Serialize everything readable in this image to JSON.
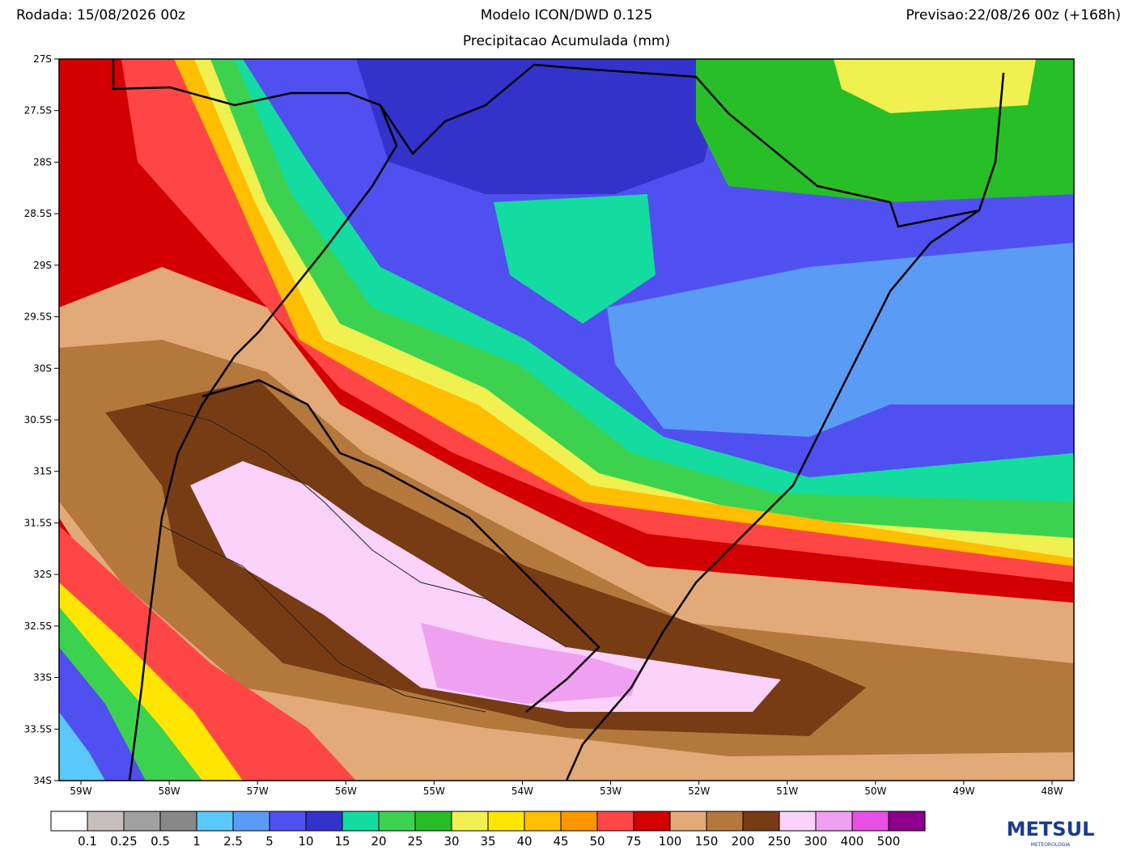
{
  "header": {
    "left": "Rodada: 15/08/2026 00z",
    "title": "Modelo ICON/DWD 0.125",
    "subtitle": "Precipitacao Acumulada (mm)",
    "right": "Previsao:22/08/26 00z (+168h)"
  },
  "map": {
    "lat_labels": [
      "27S",
      "27.5S",
      "28S",
      "28.5S",
      "29S",
      "29.5S",
      "30S",
      "30.5S",
      "31S",
      "31.5S",
      "32S",
      "32.5S",
      "33S",
      "33.5S",
      "34S"
    ],
    "lon_labels": [
      "59W",
      "58W",
      "57W",
      "56W",
      "55W",
      "54W",
      "53W",
      "52W",
      "51W",
      "50W",
      "49W",
      "48W"
    ]
  },
  "colorbar": {
    "colors": [
      "#ffffff",
      "#c8bebe",
      "#a0a0a0",
      "#888888",
      "#5ac8fa",
      "#5a9bf5",
      "#5050f0",
      "#3333cc",
      "#14dca0",
      "#3cd250",
      "#28be28",
      "#f0f050",
      "#ffe600",
      "#ffbe00",
      "#ff9600",
      "#ff4646",
      "#d20000",
      "#e1aa78",
      "#b4783c",
      "#783c14",
      "#fad2fa",
      "#f0a0f0",
      "#e650e6",
      "#8c008c"
    ],
    "labels": [
      "0.1",
      "0.25",
      "0.5",
      "1",
      "2.5",
      "5",
      "10",
      "15",
      "20",
      "25",
      "30",
      "35",
      "40",
      "45",
      "50",
      "75",
      "100",
      "150",
      "200",
      "250",
      "300",
      "400",
      "500"
    ]
  },
  "logo": {
    "name": "METSUL",
    "tagline": "METEOROLOGIA"
  }
}
